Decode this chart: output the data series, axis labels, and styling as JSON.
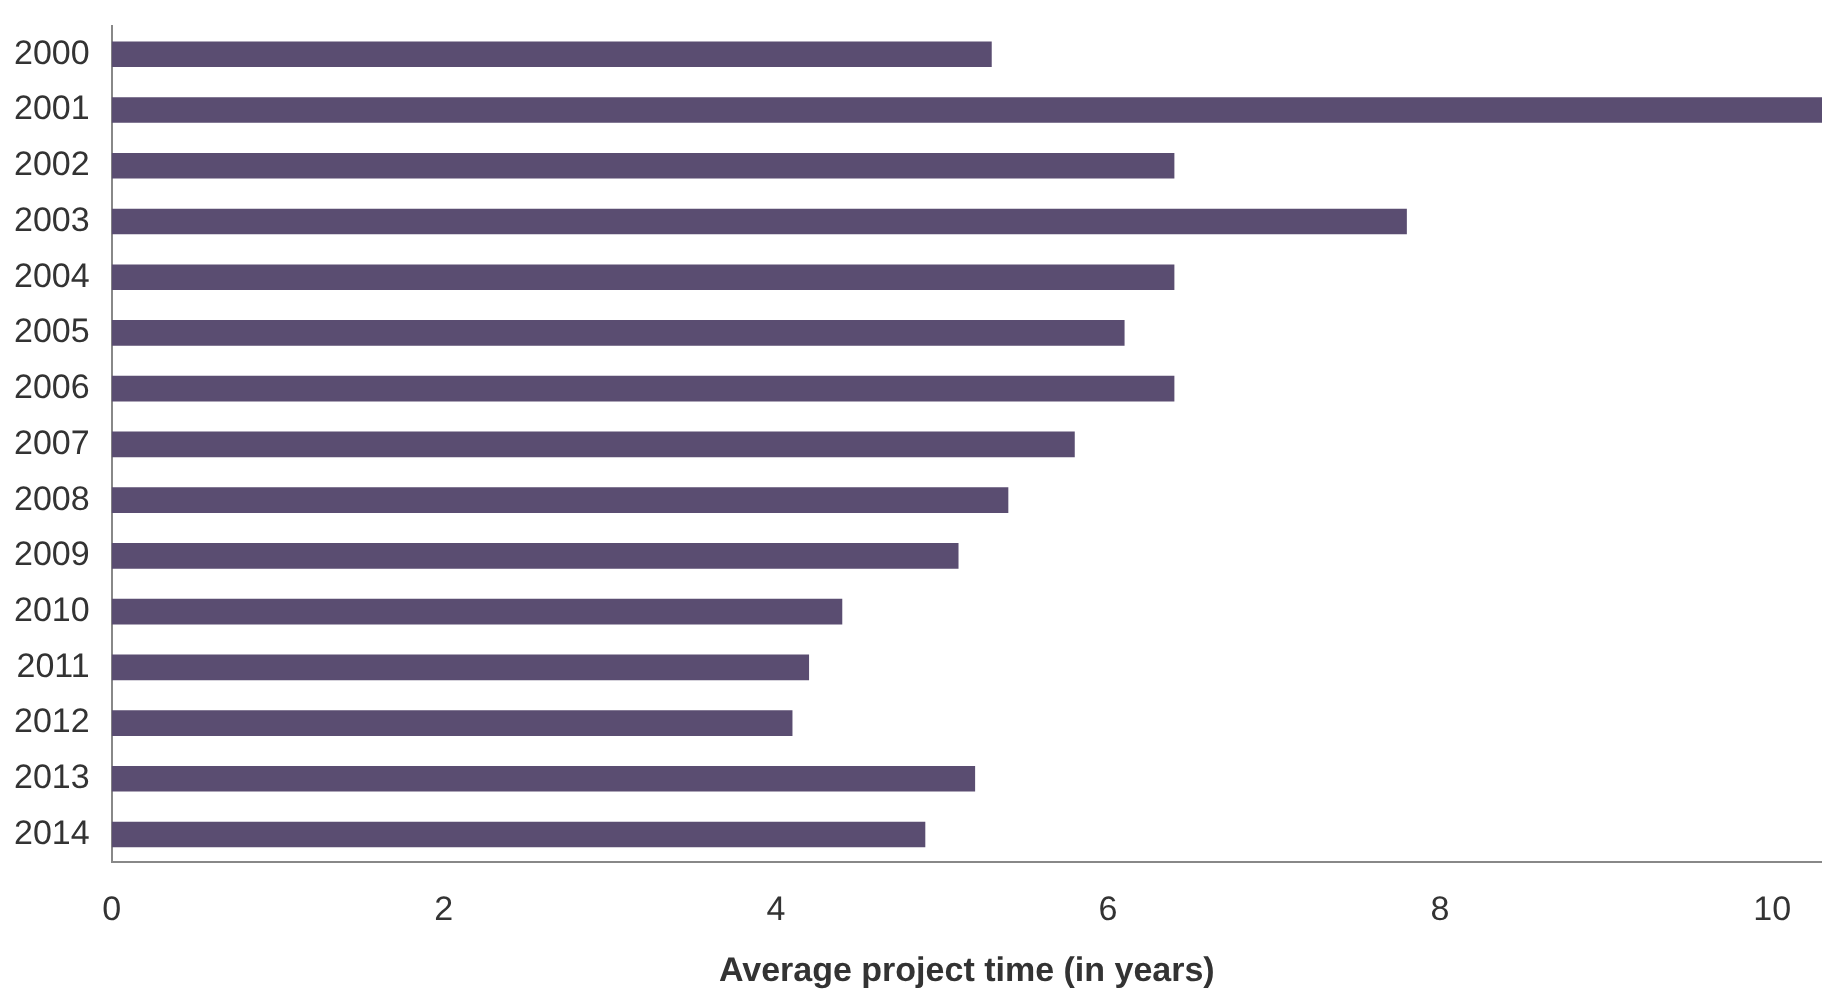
{
  "chart_data": {
    "type": "bar",
    "orientation": "horizontal",
    "xlabel": "Average project time (in years)",
    "categories": [
      "2000",
      "2001",
      "2002",
      "2003",
      "2004",
      "2005",
      "2006",
      "2007",
      "2008",
      "2009",
      "2010",
      "2011",
      "2012",
      "2013",
      "2014"
    ],
    "values": [
      5.3,
      10.3,
      6.4,
      7.8,
      6.4,
      6.1,
      6.4,
      5.8,
      5.4,
      5.1,
      4.4,
      4.2,
      4.1,
      5.2,
      4.9
    ],
    "color": "#5a4d71",
    "xlim": [
      0,
      10.3
    ],
    "xticks": [
      0,
      2,
      4,
      6,
      8,
      10
    ],
    "grid": false,
    "legend": false
  }
}
